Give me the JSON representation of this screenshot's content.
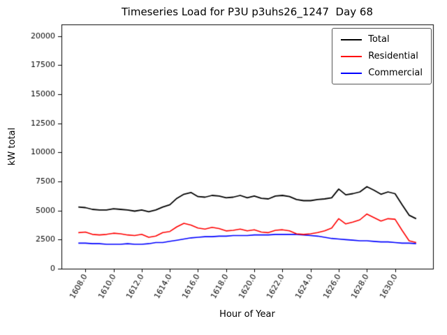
{
  "chart_data": {
    "type": "line",
    "title": "Timeseries Load for P3U p3uhs26_1247  Day 68",
    "xlabel": "Hour of Year",
    "ylabel": "kW total",
    "xlim": [
      1606.3,
      1632.7
    ],
    "ylim": [
      0,
      21000
    ],
    "xtick_values": [
      1608,
      1610,
      1612,
      1614,
      1616,
      1618,
      1620,
      1622,
      1624,
      1626,
      1628,
      1630
    ],
    "xtick_labels": [
      "1608.0",
      "1610.0",
      "1612.0",
      "1614.0",
      "1616.0",
      "1618.0",
      "1620.0",
      "1622.0",
      "1624.0",
      "1626.0",
      "1628.0",
      "1630.0"
    ],
    "yticks": [
      0,
      2500,
      5000,
      7500,
      10000,
      12500,
      15000,
      17500,
      20000
    ],
    "xtick_rotation": 60,
    "grid": false,
    "legend_position": "upper right",
    "x": [
      1607.5,
      1608.0,
      1608.5,
      1609.0,
      1609.5,
      1610.0,
      1610.5,
      1611.0,
      1611.5,
      1612.0,
      1612.5,
      1613.0,
      1613.5,
      1614.0,
      1614.5,
      1615.0,
      1615.5,
      1616.0,
      1616.5,
      1617.0,
      1617.5,
      1618.0,
      1618.5,
      1619.0,
      1619.5,
      1620.0,
      1620.5,
      1621.0,
      1621.5,
      1622.0,
      1622.5,
      1623.0,
      1623.5,
      1624.0,
      1624.5,
      1625.0,
      1625.5,
      1626.0,
      1626.5,
      1627.0,
      1627.5,
      1628.0,
      1628.5,
      1629.0,
      1629.5,
      1630.0,
      1630.5,
      1631.0,
      1631.5
    ],
    "series": [
      {
        "name": "Total",
        "color": "#000000",
        "values": [
          5300,
          5250,
          5100,
          5050,
          5050,
          5150,
          5100,
          5050,
          4950,
          5050,
          4900,
          5050,
          5300,
          5500,
          6050,
          6400,
          6550,
          6200,
          6150,
          6300,
          6250,
          6100,
          6150,
          6300,
          6100,
          6250,
          6050,
          6000,
          6250,
          6300,
          6200,
          5950,
          5850,
          5850,
          5950,
          6000,
          6100,
          6850,
          6350,
          6450,
          6600,
          7050,
          6750,
          6400,
          6600,
          6450,
          5500,
          4600,
          4300
        ]
      },
      {
        "name": "Residential",
        "color": "#ff0000",
        "values": [
          3100,
          3150,
          2950,
          2900,
          2950,
          3050,
          3000,
          2900,
          2850,
          2950,
          2700,
          2800,
          3100,
          3200,
          3600,
          3900,
          3750,
          3500,
          3400,
          3550,
          3450,
          3250,
          3300,
          3400,
          3250,
          3350,
          3150,
          3100,
          3300,
          3350,
          3250,
          3000,
          2950,
          3000,
          3100,
          3250,
          3500,
          4300,
          3850,
          4000,
          4200,
          4700,
          4400,
          4100,
          4300,
          4250,
          3300,
          2400,
          2250
        ]
      },
      {
        "name": "Commercial",
        "color": "#0000ff",
        "values": [
          2200,
          2200,
          2150,
          2150,
          2100,
          2100,
          2100,
          2150,
          2100,
          2100,
          2150,
          2250,
          2250,
          2350,
          2450,
          2550,
          2650,
          2700,
          2750,
          2750,
          2800,
          2800,
          2850,
          2850,
          2850,
          2900,
          2900,
          2900,
          2950,
          2950,
          2950,
          2950,
          2900,
          2850,
          2800,
          2700,
          2600,
          2550,
          2500,
          2450,
          2400,
          2400,
          2350,
          2300,
          2300,
          2250,
          2200,
          2200,
          2150
        ]
      }
    ]
  }
}
